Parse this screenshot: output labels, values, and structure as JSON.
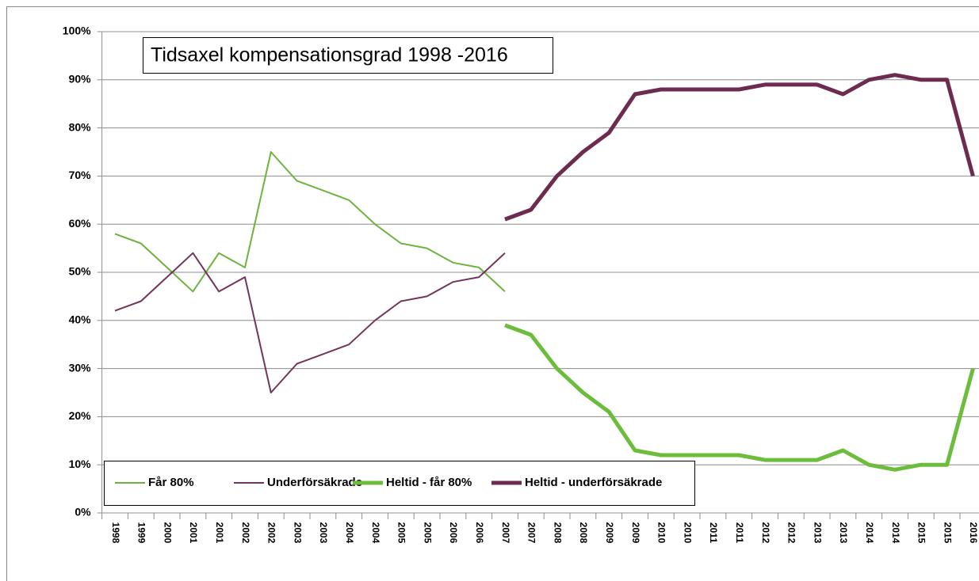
{
  "chart_data": {
    "type": "line",
    "title": "Tidsaxel kompensationsgrad  1998 -2016",
    "categories": [
      "1998",
      "1999",
      "2000",
      "2001",
      "2001",
      "2002",
      "2002",
      "2003",
      "2003",
      "2004",
      "2004",
      "2005",
      "2005",
      "2006",
      "2006",
      "2007",
      "2007",
      "2008",
      "2008",
      "2009",
      "2009",
      "2010",
      "2010",
      "2011",
      "2011",
      "2012",
      "2012",
      "2013",
      "2013",
      "2014",
      "2014",
      "2015",
      "2015",
      "2016"
    ],
    "series": [
      {
        "name": "Får 80%",
        "color": "#6db33f",
        "line_width": 2,
        "values": [
          58,
          56,
          51,
          46,
          54,
          51,
          75,
          69,
          67,
          65,
          60,
          56,
          55,
          52,
          51,
          46,
          null,
          null,
          null,
          null,
          null,
          null,
          null,
          null,
          null,
          null,
          null,
          null,
          null,
          null,
          null,
          null,
          null,
          null
        ]
      },
      {
        "name": "Underförsäkrade",
        "color": "#74345a",
        "line_width": 2,
        "values": [
          42,
          44,
          49,
          54,
          46,
          49,
          25,
          31,
          33,
          35,
          40,
          44,
          45,
          48,
          49,
          54,
          null,
          null,
          null,
          null,
          null,
          null,
          null,
          null,
          null,
          null,
          null,
          null,
          null,
          null,
          null,
          null,
          null,
          null
        ]
      },
      {
        "name": "Heltid - får 80%",
        "color": "#6cbd3c",
        "line_width": 5,
        "values": [
          null,
          null,
          null,
          null,
          null,
          null,
          null,
          null,
          null,
          null,
          null,
          null,
          null,
          null,
          null,
          39,
          37,
          30,
          25,
          21,
          13,
          12,
          12,
          12,
          12,
          11,
          11,
          11,
          13,
          10,
          9,
          10,
          10,
          30
        ]
      },
      {
        "name": "Heltid - underförsäkrade",
        "color": "#6e2b50",
        "line_width": 5,
        "values": [
          null,
          null,
          null,
          null,
          null,
          null,
          null,
          null,
          null,
          null,
          null,
          null,
          null,
          null,
          null,
          61,
          63,
          70,
          75,
          79,
          87,
          88,
          88,
          88,
          88,
          89,
          89,
          89,
          87,
          90,
          91,
          90,
          90,
          70
        ]
      }
    ],
    "ylim": [
      0,
      100
    ],
    "yticks": [
      {
        "value": 0,
        "label": "0%"
      },
      {
        "value": 10,
        "label": "10%"
      },
      {
        "value": 20,
        "label": "20%"
      },
      {
        "value": 30,
        "label": "30%"
      },
      {
        "value": 40,
        "label": "40%"
      },
      {
        "value": 50,
        "label": "50%"
      },
      {
        "value": 60,
        "label": "60%"
      },
      {
        "value": 70,
        "label": "70%"
      },
      {
        "value": 80,
        "label": "80%"
      },
      {
        "value": 90,
        "label": "90%"
      },
      {
        "value": 100,
        "label": "100%"
      }
    ],
    "grid": true,
    "legend": "bottom-left"
  }
}
